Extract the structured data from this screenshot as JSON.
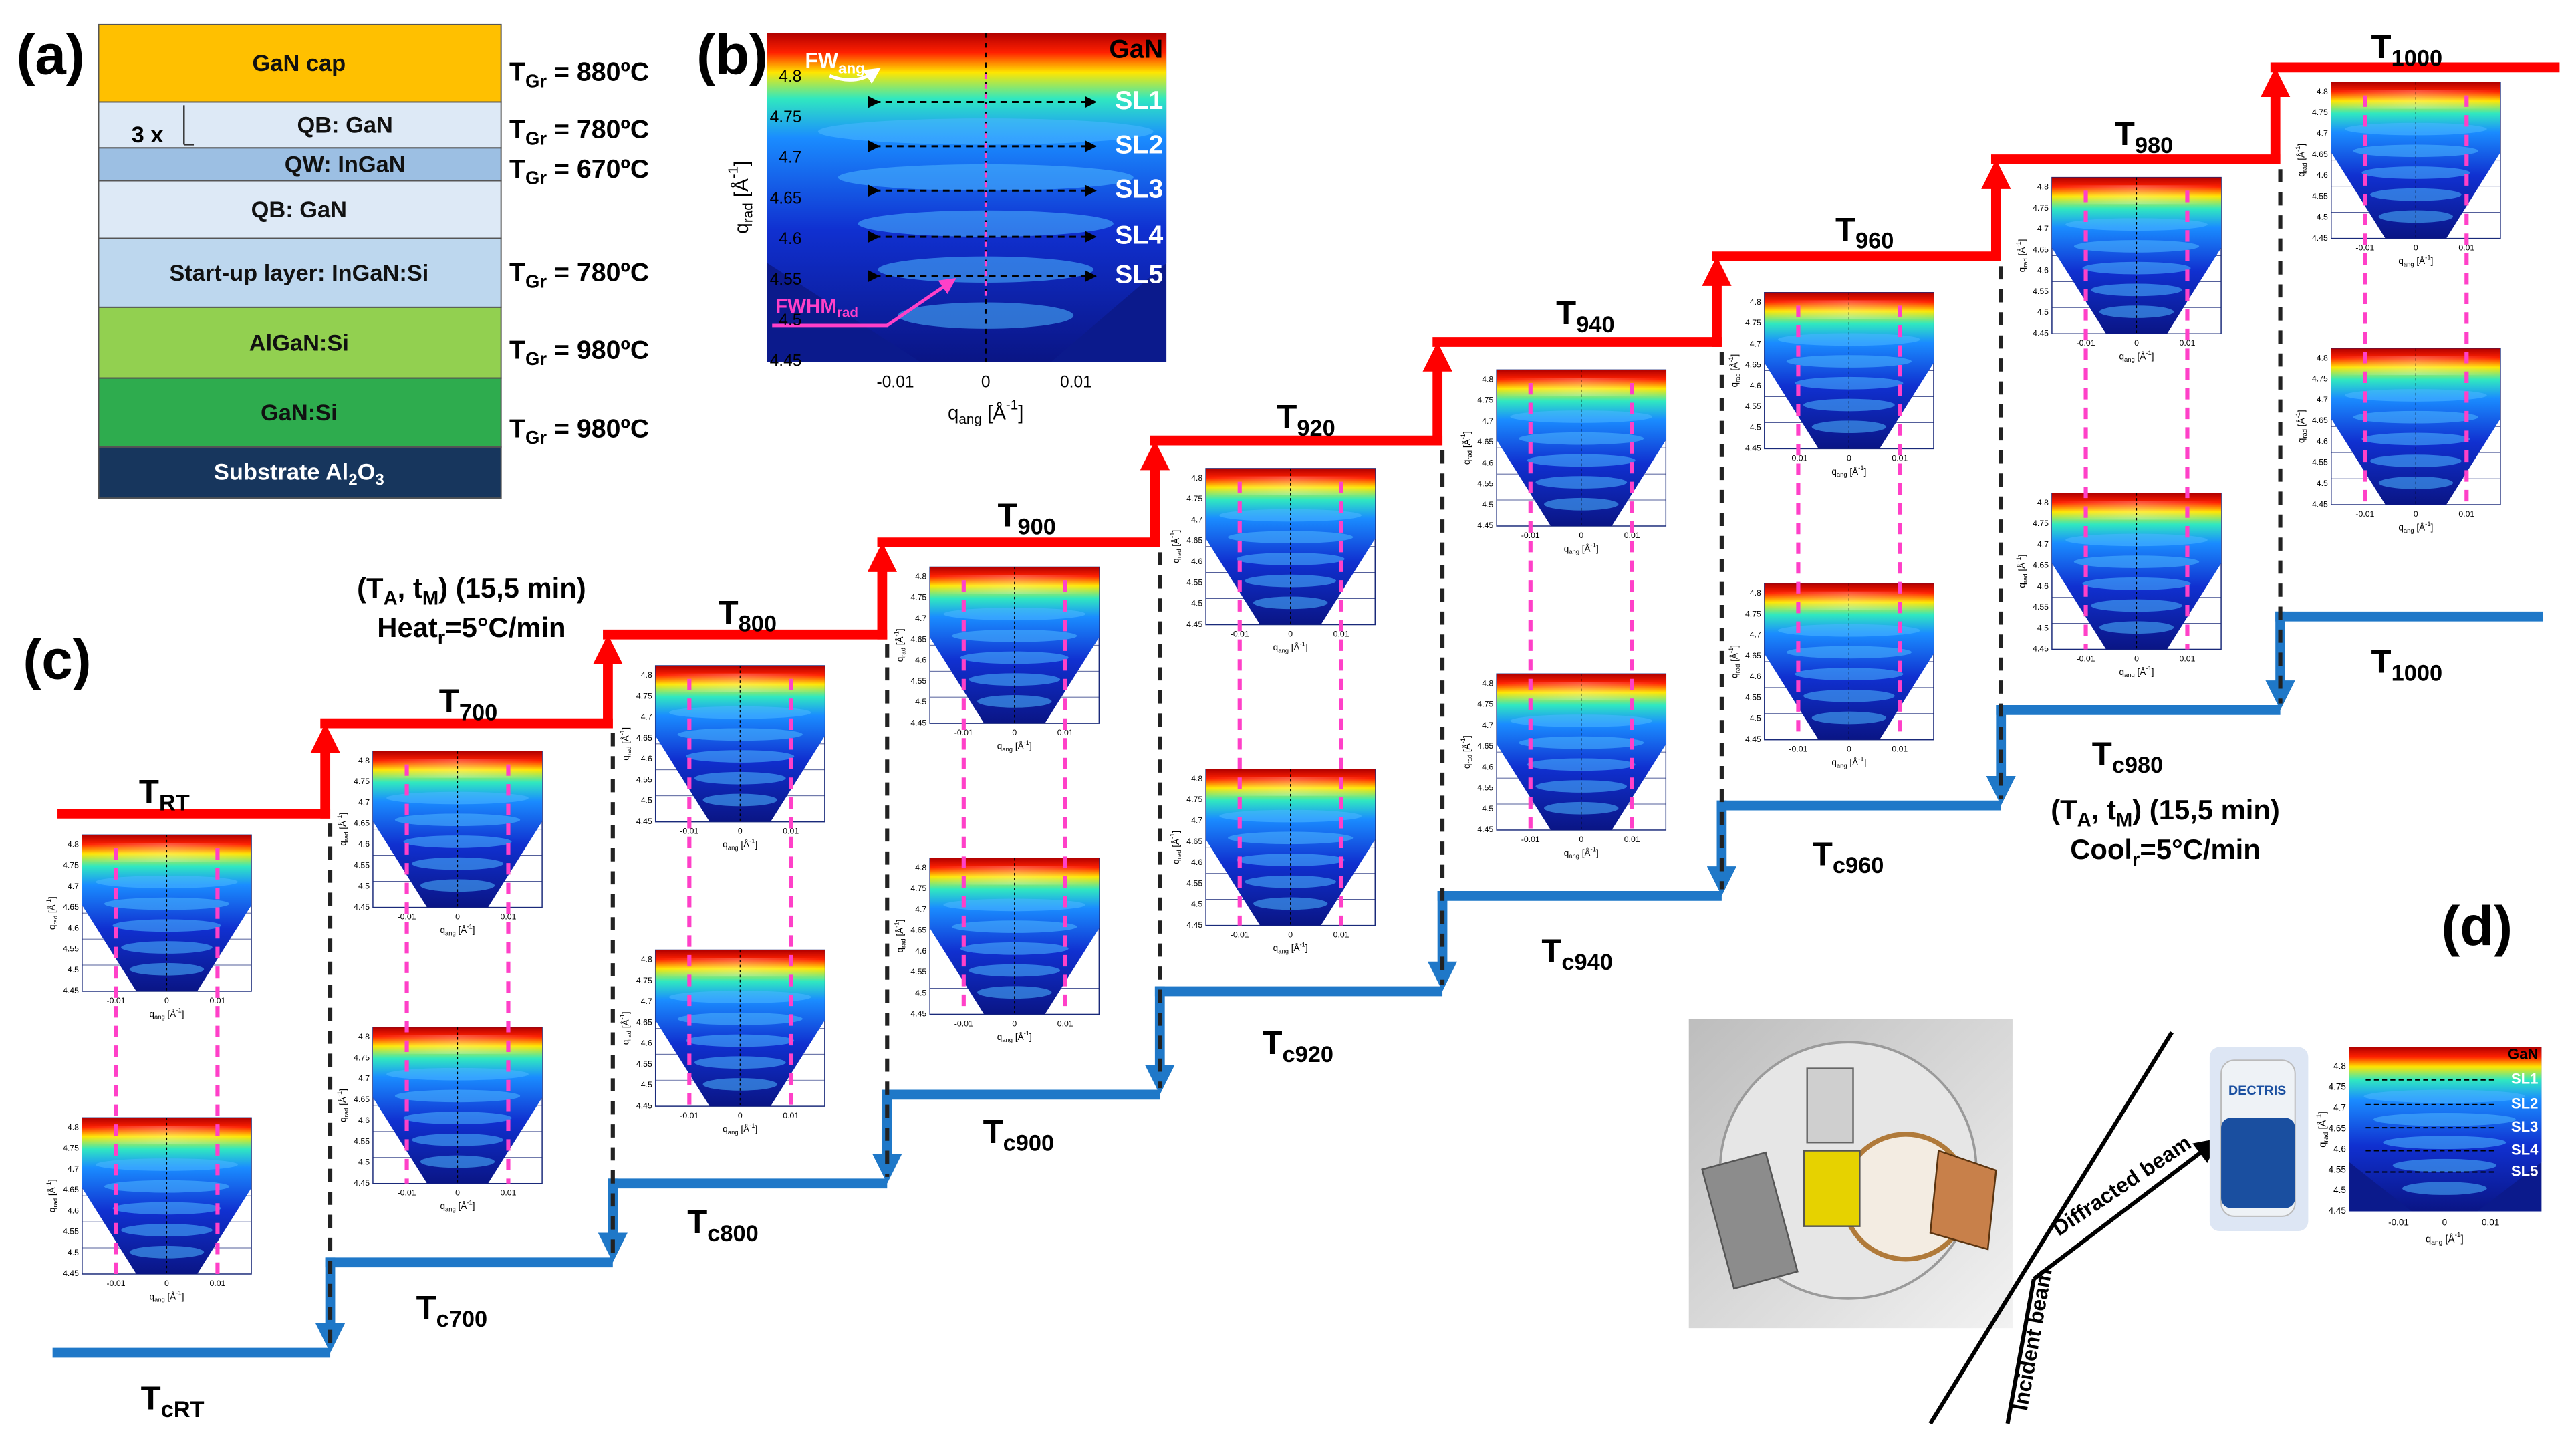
{
  "panel_labels": {
    "a": "(a)",
    "b": "(b)",
    "c": "(c)",
    "d": "(d)"
  },
  "layer_stack": {
    "repeat": "3 x",
    "layers": [
      "GaN cap",
      "QB: GaN",
      "QW: InGaN",
      "QB: GaN",
      "Start-up layer:  InGaN:Si",
      "AlGaN:Si",
      "GaN:Si"
    ],
    "substrate": [
      {
        "t": "Substrate Al"
      },
      {
        "sub": "2"
      },
      {
        "t": "O"
      },
      {
        "sub": "3"
      }
    ],
    "growth_temperatures": [
      [
        {
          "t": "T"
        },
        {
          "sub": "Gr"
        },
        {
          "t": " = 880ºC"
        }
      ],
      [
        {
          "t": "T"
        },
        {
          "sub": "Gr"
        },
        {
          "t": " = 780ºC"
        }
      ],
      [
        {
          "t": "T"
        },
        {
          "sub": "Gr"
        },
        {
          "t": " = 670ºC"
        }
      ],
      [
        {
          "t": "T"
        },
        {
          "sub": "Gr"
        },
        {
          "t": " = 780ºC"
        }
      ],
      [
        {
          "t": "T"
        },
        {
          "sub": "Gr"
        },
        {
          "t": " = 980ºC"
        }
      ],
      [
        {
          "t": "T"
        },
        {
          "sub": "Gr"
        },
        {
          "t": " = 980ºC"
        }
      ]
    ]
  },
  "rsm_b": {
    "top_label": "GaN",
    "satellites": [
      "SL1",
      "SL2",
      "SL3",
      "SL4",
      "SL5"
    ],
    "fw_ang": [
      {
        "t": "FW"
      },
      {
        "sub": "ang"
      }
    ],
    "fwhm_rad": [
      {
        "t": "FWHM"
      },
      {
        "sub": "rad"
      }
    ],
    "yticks": [
      4.45,
      4.5,
      4.55,
      4.6,
      4.65,
      4.7,
      4.75,
      4.8
    ],
    "xticks": [
      -0.01,
      0,
      0.01
    ],
    "ylabel": [
      {
        "t": "q"
      },
      {
        "sub": "rad"
      },
      {
        "t": " [Å"
      },
      {
        "sup": "-1"
      },
      {
        "t": "]"
      }
    ],
    "xlabel": [
      {
        "t": "q"
      },
      {
        "sub": "ang"
      },
      {
        "t": " [Å"
      },
      {
        "sup": "-1"
      },
      {
        "t": "]"
      }
    ]
  },
  "rsm_small": {
    "yticks": [
      4.45,
      4.5,
      4.55,
      4.6,
      4.65,
      4.7,
      4.75,
      4.8
    ],
    "xticks": [
      -0.01,
      0,
      0.01
    ],
    "ylabel": [
      {
        "t": "q"
      },
      {
        "sub": "rad"
      },
      {
        "t": " [Å"
      },
      {
        "sup": "-1"
      },
      {
        "t": "]"
      }
    ],
    "xlabel": [
      {
        "t": "q"
      },
      {
        "sub": "ang"
      },
      {
        "t": " [Å"
      },
      {
        "sup": "-1"
      },
      {
        "t": "]"
      }
    ]
  },
  "annealing": {
    "heating": [
      [
        {
          "t": "T"
        },
        {
          "sub": "RT"
        }
      ],
      [
        {
          "t": "T"
        },
        {
          "sub": "700"
        }
      ],
      [
        {
          "t": "T"
        },
        {
          "sub": "800"
        }
      ],
      [
        {
          "t": "T"
        },
        {
          "sub": "900"
        }
      ],
      [
        {
          "t": "T"
        },
        {
          "sub": "920"
        }
      ],
      [
        {
          "t": "T"
        },
        {
          "sub": "940"
        }
      ],
      [
        {
          "t": "T"
        },
        {
          "sub": "960"
        }
      ],
      [
        {
          "t": "T"
        },
        {
          "sub": "980"
        }
      ],
      [
        {
          "t": "T"
        },
        {
          "sub": "1000"
        }
      ]
    ],
    "cooling": [
      [
        {
          "t": "T"
        },
        {
          "sub": "cRT"
        }
      ],
      [
        {
          "t": "T"
        },
        {
          "sub": "c700"
        }
      ],
      [
        {
          "t": "T"
        },
        {
          "sub": "c800"
        }
      ],
      [
        {
          "t": "T"
        },
        {
          "sub": "c900"
        }
      ],
      [
        {
          "t": "T"
        },
        {
          "sub": "c920"
        }
      ],
      [
        {
          "t": "T"
        },
        {
          "sub": "c940"
        }
      ],
      [
        {
          "t": "T"
        },
        {
          "sub": "c960"
        }
      ],
      [
        {
          "t": "T"
        },
        {
          "sub": "c980"
        }
      ],
      [
        {
          "t": "T"
        },
        {
          "sub": "1000"
        }
      ]
    ],
    "heat_note": [
      [
        {
          "t": "(T"
        },
        {
          "sub": "A"
        },
        {
          "t": ", t"
        },
        {
          "sub": "M"
        },
        {
          "t": ") (15,5 min)"
        }
      ],
      [
        {
          "t": "Heat"
        },
        {
          "sub": "r"
        },
        {
          "t": "=5°C/min"
        }
      ]
    ],
    "cool_note": [
      [
        {
          "t": "(T"
        },
        {
          "sub": "A"
        },
        {
          "t": ", t"
        },
        {
          "sub": "M"
        },
        {
          "t": ") (15,5 min)"
        }
      ],
      [
        {
          "t": "Cool"
        },
        {
          "sub": "r"
        },
        {
          "t": "=5°C/min"
        }
      ]
    ]
  },
  "setup": {
    "diffracted": "Diffracted beam",
    "incident": "Incident beam",
    "detector": "DECTRIS",
    "map_top": "GaN",
    "map_satellites": [
      "SL1",
      "SL2",
      "SL3",
      "SL4",
      "SL5"
    ]
  }
}
